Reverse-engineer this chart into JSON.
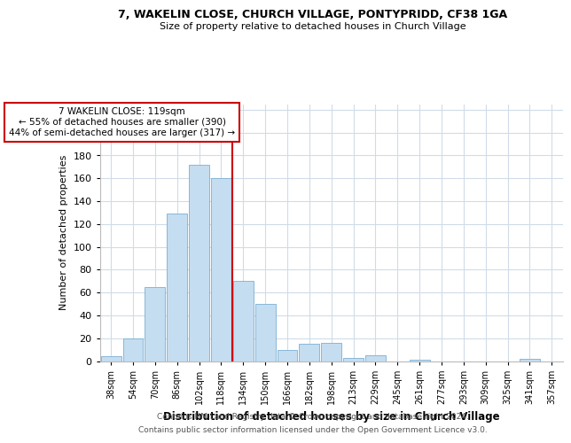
{
  "title_line1": "7, WAKELIN CLOSE, CHURCH VILLAGE, PONTYPRIDD, CF38 1GA",
  "title_line2": "Size of property relative to detached houses in Church Village",
  "xlabel": "Distribution of detached houses by size in Church Village",
  "ylabel": "Number of detached properties",
  "bar_color": "#c5ddf0",
  "bar_edge_color": "#7aafd4",
  "categories": [
    "38sqm",
    "54sqm",
    "70sqm",
    "86sqm",
    "102sqm",
    "118sqm",
    "134sqm",
    "150sqm",
    "166sqm",
    "182sqm",
    "198sqm",
    "213sqm",
    "229sqm",
    "245sqm",
    "261sqm",
    "277sqm",
    "293sqm",
    "309sqm",
    "325sqm",
    "341sqm",
    "357sqm"
  ],
  "values": [
    4,
    20,
    65,
    129,
    172,
    160,
    70,
    50,
    10,
    15,
    16,
    3,
    5,
    0,
    1,
    0,
    0,
    0,
    0,
    2,
    0
  ],
  "vline_x": 5.5,
  "vline_color": "#cc0000",
  "ylim": [
    0,
    225
  ],
  "yticks": [
    0,
    20,
    40,
    60,
    80,
    100,
    120,
    140,
    160,
    180,
    200,
    220
  ],
  "annotation_title": "7 WAKELIN CLOSE: 119sqm",
  "annotation_line1": "← 55% of detached houses are smaller (390)",
  "annotation_line2": "44% of semi-detached houses are larger (317) →",
  "footer_line1": "Contains HM Land Registry data © Crown copyright and database right 2024.",
  "footer_line2": "Contains public sector information licensed under the Open Government Licence v3.0.",
  "background_color": "#ffffff",
  "grid_color": "#d0dce8"
}
